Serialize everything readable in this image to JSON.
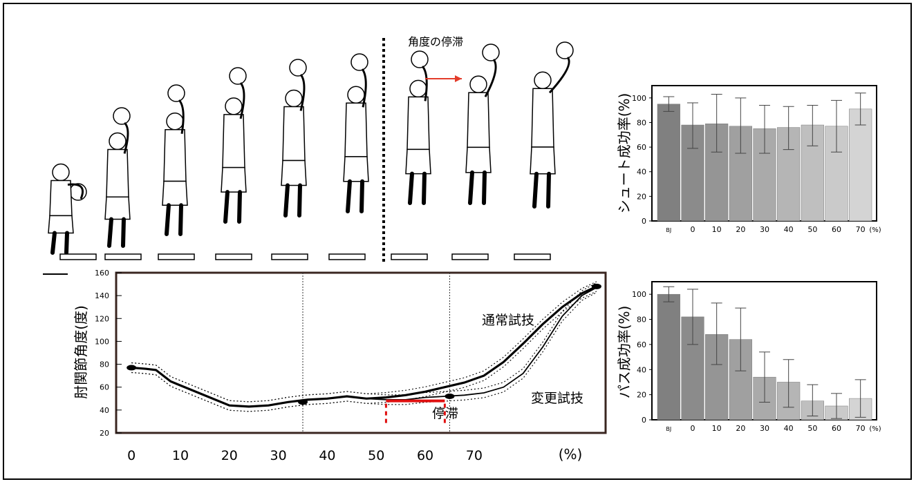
{
  "figure": {
    "stagnation_top_label": "角度の停滞",
    "trial_normal": "通常試技",
    "trial_changed": "変更試技",
    "stagnation_label": "停滞"
  },
  "chart_data": [
    {
      "type": "line",
      "ylabel": "肘関節角度(度)",
      "x_ticks": [
        "0",
        "10",
        "20",
        "30",
        "40",
        "50",
        "60",
        "70"
      ],
      "x_unit": "(%)",
      "y_ticks": [
        "20",
        "40",
        "60",
        "80",
        "100",
        "120",
        "140",
        "160"
      ],
      "ylim": [
        20,
        160
      ],
      "xlim": [
        -2,
        96
      ],
      "series": [
        {
          "name": "通常試技",
          "x": [
            0,
            3,
            5,
            8,
            12,
            16,
            20,
            24,
            28,
            32,
            36,
            40,
            44,
            48,
            52,
            56,
            60,
            64,
            68,
            72,
            76,
            80,
            84,
            88,
            92,
            95
          ],
          "y": [
            77,
            76,
            75,
            65,
            58,
            51,
            44,
            43,
            44,
            47,
            49,
            50,
            52,
            50,
            51,
            53,
            56,
            60,
            64,
            70,
            82,
            98,
            115,
            130,
            142,
            148
          ]
        },
        {
          "name": "変更試技",
          "x": [
            0,
            3,
            5,
            8,
            12,
            16,
            20,
            24,
            28,
            32,
            36,
            40,
            44,
            48,
            52,
            56,
            60,
            64,
            68,
            72,
            76,
            80,
            84,
            88,
            92,
            95
          ],
          "y": [
            77,
            76,
            75,
            65,
            58,
            51,
            44,
            43,
            44,
            47,
            49,
            50,
            52,
            50,
            49,
            49,
            51,
            52,
            53,
            55,
            60,
            72,
            95,
            122,
            140,
            147
          ]
        }
      ],
      "vlines": [
        35,
        65
      ],
      "markers": [
        {
          "x": 0,
          "y": 77
        },
        {
          "x": 35,
          "y": 47
        },
        {
          "x": 65,
          "y": 52
        },
        {
          "x": 95,
          "y": 148
        }
      ],
      "stagnation": {
        "x0": 52,
        "x1": 64,
        "y": 48
      }
    },
    {
      "type": "bar",
      "ylabel": "シュート成功率(%)",
      "categories": [
        "BJ",
        "0",
        "10",
        "20",
        "30",
        "40",
        "50",
        "60",
        "70"
      ],
      "x_unit": "(%)",
      "values": [
        95,
        78,
        79,
        77,
        75,
        76,
        78,
        77,
        91
      ],
      "error_low": [
        89,
        59,
        56,
        55,
        55,
        58,
        61,
        56,
        78
      ],
      "error_high": [
        101,
        96,
        103,
        100,
        94,
        93,
        94,
        98,
        104
      ],
      "ylim": [
        0,
        110
      ],
      "y_ticks": [
        "0",
        "20",
        "40",
        "60",
        "80",
        "100"
      ]
    },
    {
      "type": "bar",
      "ylabel": "パス成功率(%)",
      "categories": [
        "BJ",
        "0",
        "10",
        "20",
        "30",
        "40",
        "50",
        "60",
        "70"
      ],
      "x_unit": "(%)",
      "values": [
        100,
        82,
        68,
        64,
        34,
        30,
        15,
        11,
        17
      ],
      "error_low": [
        94,
        60,
        44,
        39,
        14,
        10,
        3,
        1,
        2
      ],
      "error_high": [
        106,
        104,
        93,
        89,
        54,
        48,
        28,
        21,
        32
      ],
      "ylim": [
        0,
        110
      ],
      "y_ticks": [
        "0",
        "20",
        "40",
        "60",
        "80",
        "100"
      ]
    }
  ]
}
